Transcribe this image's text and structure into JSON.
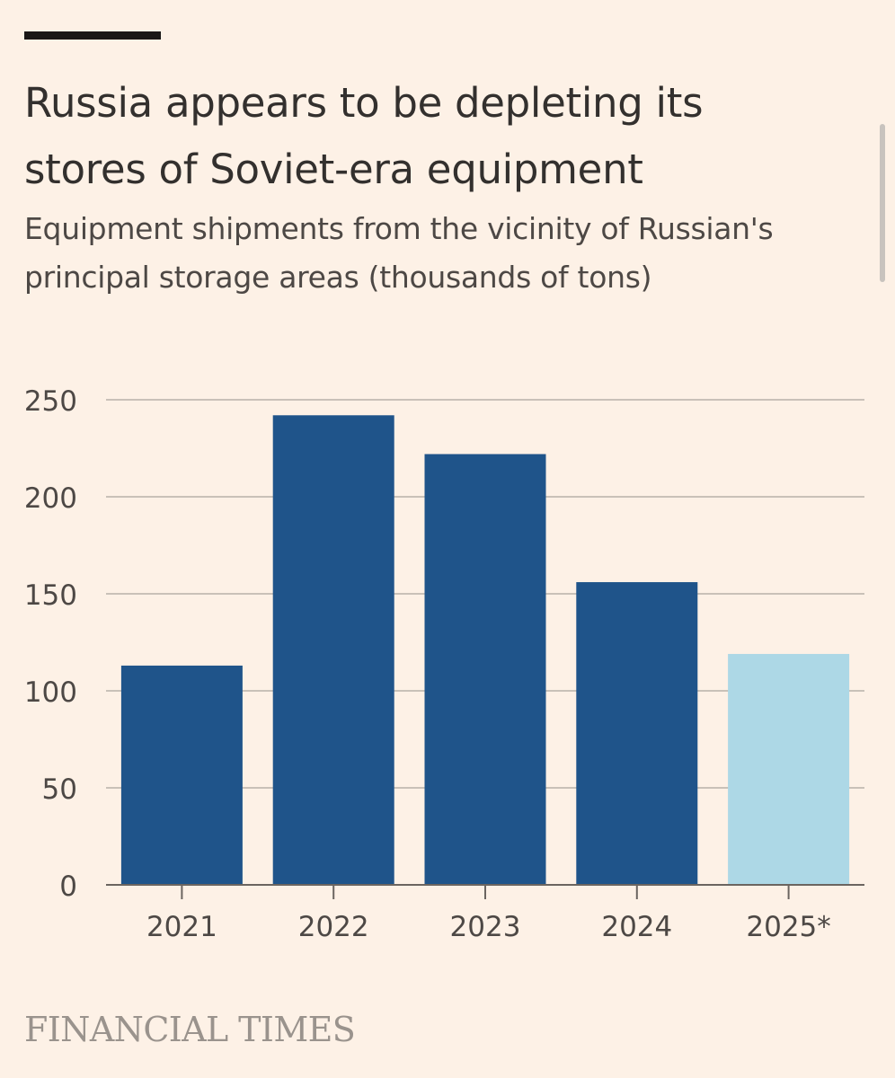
{
  "header": {
    "title_line1": "Russia appears to be depleting its",
    "title_line2": "stores of Soviet-era equipment",
    "subtitle_line1": "Equipment shipments from the vicinity of Russian's",
    "subtitle_line2": "principal storage areas (thousands of tons)"
  },
  "footer": {
    "brand": "FINANCIAL TIMES"
  },
  "colors": {
    "background": "#fdf1e6",
    "bar_actual": "#1f548a",
    "bar_estimate": "#add8e6",
    "gridline": "#c9c1b8",
    "text": "#33302e"
  },
  "chart_data": {
    "type": "bar",
    "categories": [
      "2021",
      "2022",
      "2023",
      "2024",
      "2025*"
    ],
    "values": [
      113,
      242,
      222,
      156,
      119
    ],
    "estimated": [
      false,
      false,
      false,
      false,
      true
    ],
    "ylim": [
      0,
      250
    ],
    "yticks": [
      0,
      50,
      100,
      150,
      200,
      250
    ],
    "xlabel": "",
    "ylabel": "",
    "grid": true,
    "legend": "none"
  }
}
